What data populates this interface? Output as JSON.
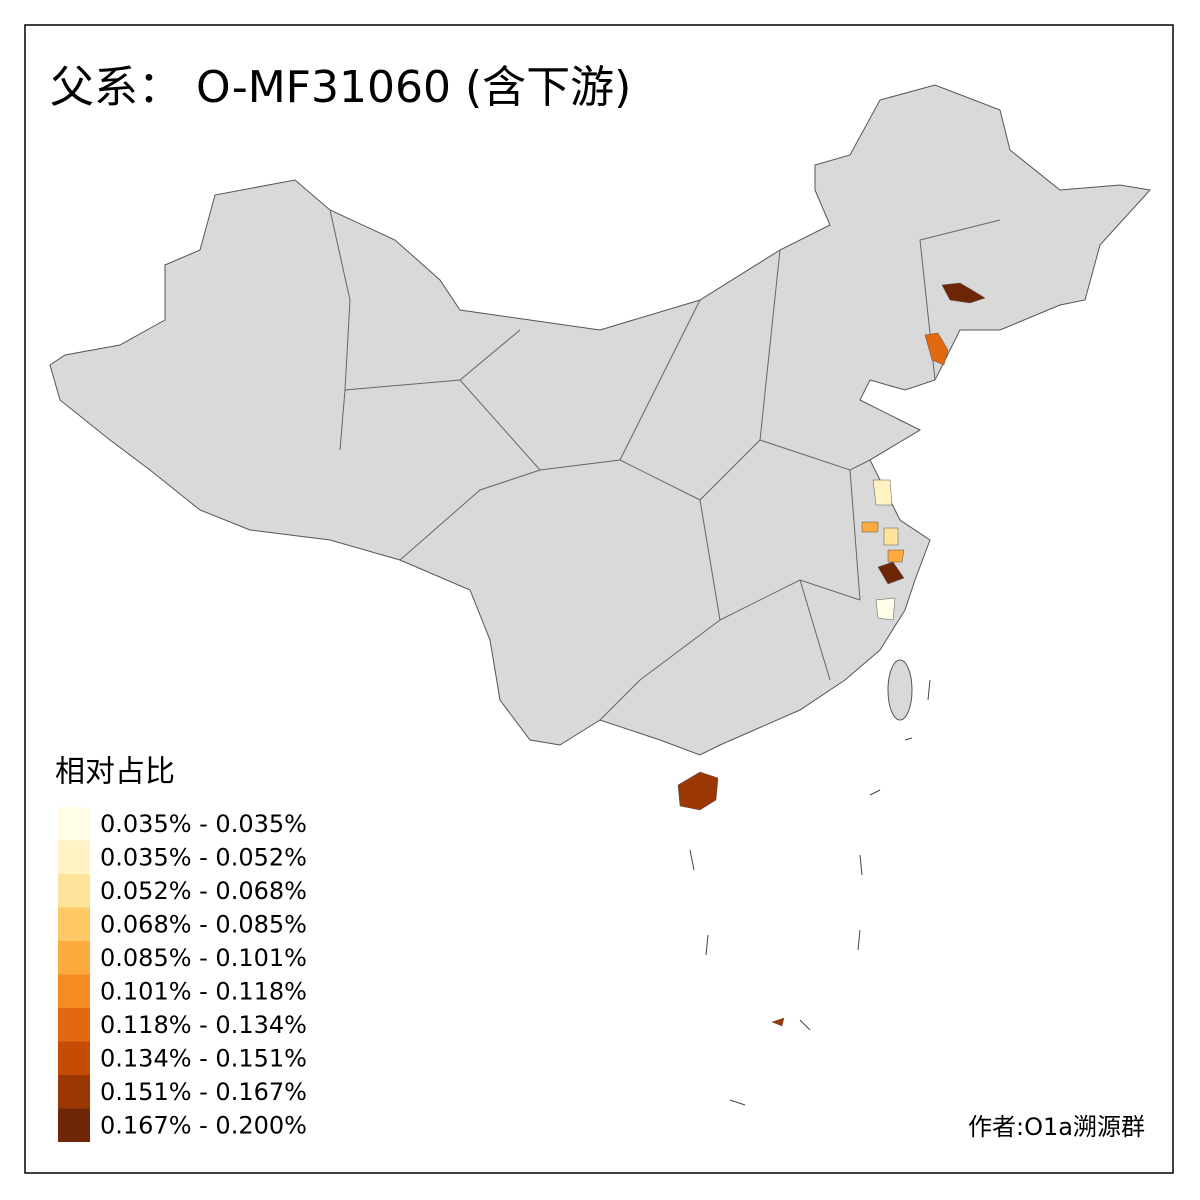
{
  "title": "父系： O-MF31060 (含下游)",
  "legend": {
    "title": "相对占比",
    "items": [
      {
        "label": "0.035% - 0.035%",
        "color": "#fffde8"
      },
      {
        "label": "0.035% - 0.052%",
        "color": "#fff3c6"
      },
      {
        "label": "0.052% - 0.068%",
        "color": "#fee39a"
      },
      {
        "label": "0.068% - 0.085%",
        "color": "#fec964"
      },
      {
        "label": "0.085% - 0.101%",
        "color": "#fdaa3e"
      },
      {
        "label": "0.101% - 0.118%",
        "color": "#f68a23"
      },
      {
        "label": "0.118% - 0.134%",
        "color": "#e2690f"
      },
      {
        "label": "0.134% - 0.151%",
        "color": "#c44c04"
      },
      {
        "label": "0.151% - 0.167%",
        "color": "#9b3703"
      },
      {
        "label": "0.167% - 0.200%",
        "color": "#6e2607"
      }
    ]
  },
  "credit": "作者:O1a溯源群"
}
